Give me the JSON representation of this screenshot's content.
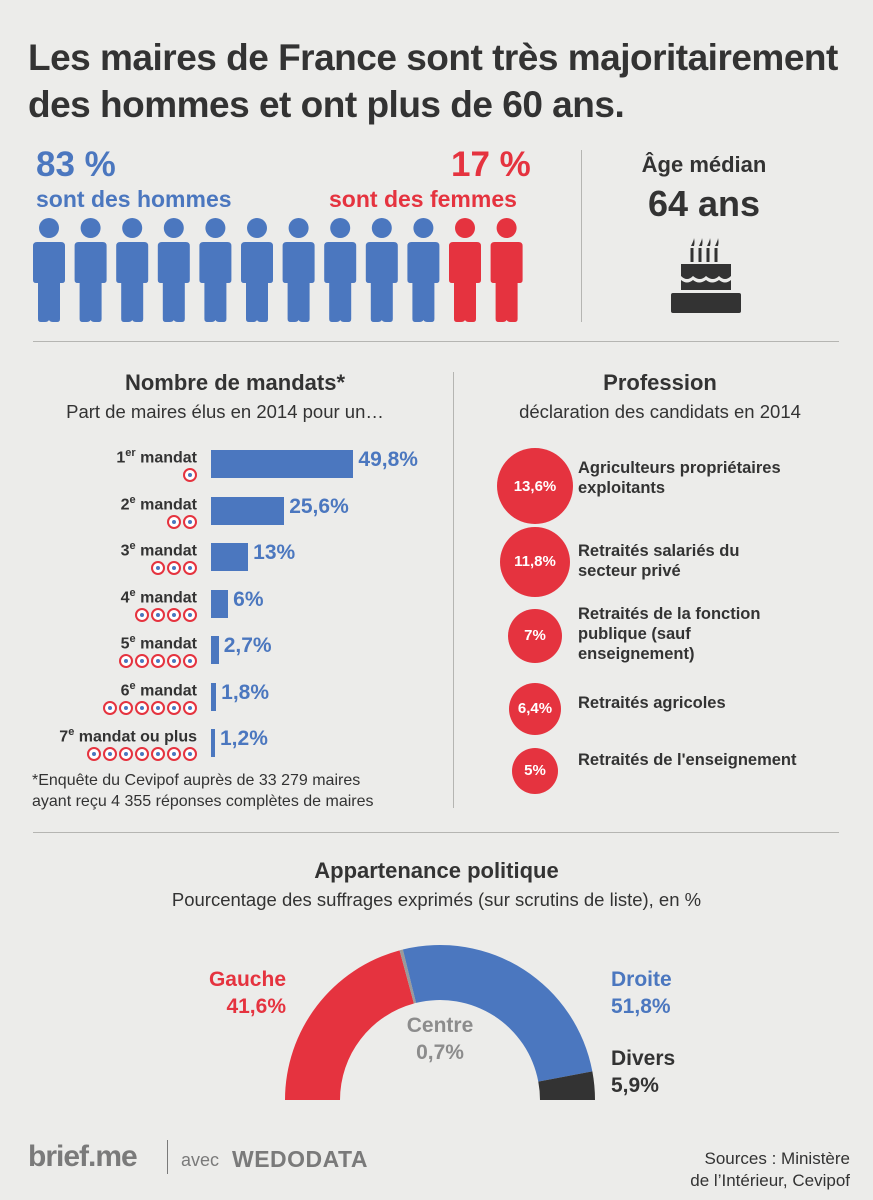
{
  "title": "Les maires de France sont très majoritairement des hommes et ont plus de 60 ans.",
  "gender": {
    "men_pct": "83 %",
    "men_label": "sont des hommes",
    "women_pct": "17 %",
    "women_label": "sont des femmes",
    "men_figures": 10,
    "women_figures": 2,
    "men_color": "#4b77bf",
    "women_color": "#e5333f"
  },
  "age": {
    "label": "Âge médian",
    "value": "64 ans",
    "icon": "birthday-cake-icon"
  },
  "mandats": {
    "title": "Nombre de mandats*",
    "subtitle": "Part de maires élus en 2014 pour un…",
    "footnote_line1": "*Enquête du Cevipof auprès de 33 279 maires",
    "footnote_line2": "ayant reçu 4 355 réponses complètes de maires"
  },
  "profession": {
    "title": "Profession",
    "subtitle": "déclaration des candidats en 2014",
    "items": [
      {
        "pct": "13,6%",
        "value": 13.6,
        "label": "Agriculteurs propriétaires exploitants"
      },
      {
        "pct": "11,8%",
        "value": 11.8,
        "label": "Retraités salariés du secteur privé"
      },
      {
        "pct": "7%",
        "value": 7,
        "label": "Retraités de la fonction publique (sauf enseignement)"
      },
      {
        "pct": "6,4%",
        "value": 6.4,
        "label": "Retraités agricoles"
      },
      {
        "pct": "5%",
        "value": 5,
        "label": "Retraités de l'enseignement"
      }
    ]
  },
  "politique": {
    "title": "Appartenance politique",
    "subtitle": "Pourcentage des suffrages exprimés (sur scrutins de liste), en %",
    "gauche_label": "Gauche",
    "gauche_pct": "41,6%",
    "centre_label": "Centre",
    "centre_pct": "0,7%",
    "droite_label": "Droite",
    "droite_pct": "51,8%",
    "divers_label": "Divers",
    "divers_pct": "5,9%"
  },
  "footer": {
    "brand": "brief.me",
    "avec": "avec",
    "partner": "WEDODATA",
    "sources_line1": "Sources : Ministère",
    "sources_line2": "de l’Intérieur, Cevipof"
  },
  "chart_data": [
    {
      "type": "bar",
      "title": "Nombre de mandats*",
      "categories": [
        "1er mandat",
        "2e mandat",
        "3e mandat",
        "4e mandat",
        "5e mandat",
        "6e mandat",
        "7e mandat ou plus"
      ],
      "category_ordinals": [
        "1",
        "2",
        "3",
        "4",
        "5",
        "6",
        "7"
      ],
      "category_sups": [
        "er",
        "e",
        "e",
        "e",
        "e",
        "e",
        "e"
      ],
      "category_suffixes": [
        " mandat",
        " mandat",
        " mandat",
        " mandat",
        " mandat",
        " mandat",
        " mandat ou plus"
      ],
      "dot_counts": [
        1,
        2,
        3,
        4,
        5,
        6,
        7
      ],
      "values": [
        49.8,
        25.6,
        13,
        6,
        2.7,
        1.8,
        1.2
      ],
      "value_labels": [
        "49,8%",
        "25,6%",
        "13%",
        "6%",
        "2,7%",
        "1,8%",
        "1,2%"
      ],
      "ylim": [
        0,
        50
      ],
      "color": "#4b77bf"
    },
    {
      "type": "pie",
      "title": "Appartenance politique",
      "categories": [
        "Gauche",
        "Centre",
        "Droite",
        "Divers"
      ],
      "values": [
        41.6,
        0.7,
        51.8,
        5.9
      ],
      "colors": [
        "#e5333f",
        "#9a9a9a",
        "#4b77bf",
        "#333333"
      ]
    }
  ]
}
